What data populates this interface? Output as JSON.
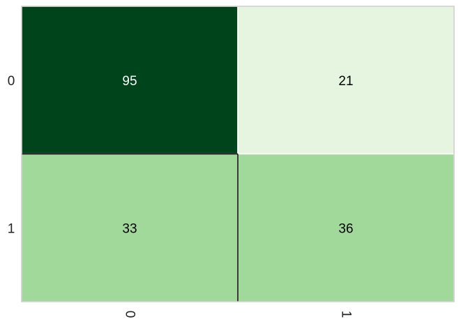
{
  "chart_data": {
    "type": "heatmap",
    "title": "",
    "xlabel": "",
    "ylabel": "",
    "row_labels": [
      "0",
      "1"
    ],
    "col_labels": [
      "0",
      "1"
    ],
    "values": [
      [
        95,
        21
      ],
      [
        33,
        36
      ]
    ],
    "cell_labels": [
      [
        "95",
        "21"
      ],
      [
        "33",
        "36"
      ]
    ],
    "colormap": "Greens",
    "cell_colors": [
      [
        "#00441b",
        "#e5f5e0"
      ],
      [
        "#a1d99b",
        "#a1d99b"
      ]
    ],
    "cell_text_colors": [
      [
        "#ffffff",
        "#000000"
      ],
      [
        "#000000",
        "#000000"
      ]
    ],
    "grid": false,
    "legend": "none"
  }
}
